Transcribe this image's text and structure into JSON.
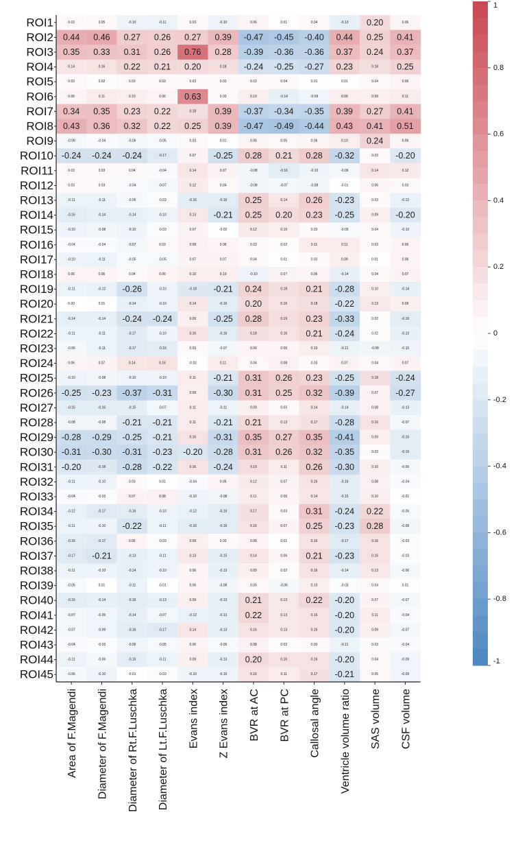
{
  "chart_data": {
    "type": "heatmap",
    "rows": [
      "ROI1",
      "ROI2",
      "ROI3",
      "ROI4",
      "ROI5",
      "ROI6",
      "ROI7",
      "ROI8",
      "ROI9",
      "ROI10",
      "ROI11",
      "ROI12",
      "ROI13",
      "ROI14",
      "ROI15",
      "ROI16",
      "ROI17",
      "ROI18",
      "ROI19",
      "ROI20",
      "ROI21",
      "ROI22",
      "ROI23",
      "ROI24",
      "ROI25",
      "ROI26",
      "ROI27",
      "ROI28",
      "ROI29",
      "ROI30",
      "ROI31",
      "ROI32",
      "ROI33",
      "ROI34",
      "ROI35",
      "ROI36",
      "ROI37",
      "ROI38",
      "ROI39",
      "ROI40",
      "ROI41",
      "ROI42",
      "ROI43",
      "ROI44",
      "ROI45"
    ],
    "columns": [
      "Area of F.Magendi",
      "Diameter of F.Magendi",
      "Diameter of Rt.F.Luschka",
      "Diameter of Lt.F.Luschka",
      "Evans index",
      "Z Evans index",
      "BVR at AC",
      "BVR at PC",
      "Callosal angle",
      "Ventricle volume ratio",
      "SAS volume",
      "CSF volume"
    ],
    "values": [
      [
        0.03,
        0.05,
        -0.1,
        -0.11,
        0.03,
        -0.1,
        0.06,
        0.01,
        0.04,
        -0.13,
        0.2,
        0.06
      ],
      [
        0.44,
        0.46,
        0.27,
        0.26,
        0.27,
        0.39,
        -0.47,
        -0.45,
        -0.4,
        0.44,
        0.25,
        0.41
      ],
      [
        0.35,
        0.33,
        0.31,
        0.26,
        0.76,
        0.28,
        -0.39,
        -0.36,
        -0.36,
        0.37,
        0.24,
        0.37
      ],
      [
        0.14,
        0.16,
        0.22,
        0.21,
        0.2,
        0.18,
        -0.24,
        -0.25,
        -0.27,
        0.23,
        0.18,
        0.25
      ],
      [
        0.03,
        0.02,
        0.03,
        0.03,
        0.03,
        0.03,
        0.03,
        0.04,
        0.01,
        0.01,
        0.04,
        0.06
      ],
      [
        0.06,
        0.11,
        0.1,
        0.06,
        0.63,
        0.03,
        0.1,
        -0.14,
        -0.09,
        0.09,
        0.09,
        0.11
      ],
      [
        0.34,
        0.35,
        0.23,
        0.22,
        0.18,
        0.39,
        -0.37,
        -0.34,
        -0.35,
        0.39,
        0.27,
        0.41
      ],
      [
        0.43,
        0.36,
        0.32,
        0.22,
        0.25,
        0.39,
        -0.47,
        -0.49,
        -0.44,
        0.43,
        0.41,
        0.51
      ],
      [
        -0.06,
        -0.04,
        -0.06,
        -0.05,
        0.03,
        0.01,
        0.06,
        0.05,
        0.06,
        0.1,
        0.24,
        0.06
      ],
      [
        -0.24,
        -0.24,
        -0.24,
        -0.17,
        0.07,
        -0.25,
        0.28,
        0.21,
        0.28,
        -0.32,
        0.03,
        -0.2
      ],
      [
        0.03,
        0.03,
        0.04,
        -0.04,
        0.14,
        0.07,
        -0.08,
        -0.16,
        -0.1,
        -0.06,
        0.14,
        0.12
      ],
      [
        0.03,
        0.03,
        -0.04,
        -0.07,
        0.12,
        0.04,
        -0.08,
        -0.07,
        -0.08,
        -0.01,
        0.06,
        0.03
      ],
      [
        -0.11,
        -0.11,
        -0.06,
        -0.03,
        -0.16,
        -0.16,
        0.25,
        0.14,
        0.26,
        -0.23,
        0.03,
        -0.12
      ],
      [
        -0.16,
        -0.14,
        -0.14,
        -0.1,
        0.13,
        -0.21,
        0.25,
        0.2,
        0.23,
        -0.25,
        0.09,
        -0.2
      ],
      [
        -0.1,
        -0.08,
        -0.1,
        -0.03,
        0.07,
        -0.02,
        0.12,
        0.1,
        0.03,
        -0.05,
        0.04,
        -0.1
      ],
      [
        -0.04,
        -0.04,
        -0.07,
        0.03,
        0.08,
        0.06,
        0.03,
        0.02,
        0.11,
        0.11,
        0.03,
        0.06
      ],
      [
        -0.1,
        -0.11,
        -0.05,
        -0.05,
        0.07,
        0.07,
        0.04,
        0.01,
        0.03,
        0.09,
        0.01,
        0.06
      ],
      [
        0.06,
        0.06,
        0.04,
        0.06,
        0.1,
        0.1,
        -0.1,
        0.07,
        0.06,
        -0.14,
        0.04,
        0.07
      ],
      [
        -0.11,
        -0.12,
        -0.26,
        -0.1,
        -0.18,
        -0.21,
        0.24,
        0.18,
        0.21,
        -0.28,
        0.1,
        -0.14
      ],
      [
        0.0,
        0.01,
        -0.14,
        -0.1,
        0.14,
        -0.16,
        0.2,
        0.16,
        0.18,
        -0.22,
        0.13,
        0.09
      ],
      [
        -0.14,
        -0.14,
        -0.24,
        -0.24,
        0.09,
        -0.25,
        0.28,
        0.19,
        0.23,
        -0.33,
        0.02,
        -0.16
      ],
      [
        -0.11,
        -0.11,
        -0.17,
        -0.1,
        0.16,
        -0.16,
        0.18,
        0.16,
        0.21,
        -0.24,
        0.02,
        -0.13
      ],
      [
        -0.06,
        -0.11,
        -0.17,
        -0.16,
        0.03,
        -0.07,
        0.06,
        0.06,
        0.1,
        -0.11,
        -0.08,
        -0.1
      ],
      [
        0.06,
        0.07,
        0.14,
        0.16,
        -0.02,
        0.11,
        0.04,
        0.08,
        0.03,
        0.07,
        0.04,
        0.07
      ],
      [
        -0.1,
        -0.08,
        -0.1,
        -0.1,
        0.11,
        -0.21,
        0.31,
        0.26,
        0.23,
        -0.25,
        0.18,
        -0.24
      ],
      [
        -0.25,
        -0.23,
        -0.37,
        -0.31,
        0.09,
        -0.3,
        0.31,
        0.25,
        0.32,
        -0.39,
        0.07,
        -0.27
      ],
      [
        -0.16,
        -0.16,
        -0.15,
        -0.07,
        0.11,
        -0.11,
        0.09,
        0.03,
        0.14,
        -0.14,
        0.08,
        -0.13
      ],
      [
        -0.08,
        -0.08,
        -0.21,
        -0.21,
        0.11,
        -0.21,
        0.21,
        0.13,
        0.17,
        -0.28,
        0.16,
        -0.07
      ],
      [
        -0.28,
        -0.29,
        -0.25,
        -0.21,
        0.16,
        -0.31,
        0.35,
        0.27,
        0.35,
        -0.41,
        0.09,
        -0.16
      ],
      [
        -0.31,
        -0.3,
        -0.31,
        -0.23,
        -0.2,
        -0.28,
        0.31,
        0.26,
        0.32,
        -0.35,
        0.03,
        -0.16
      ],
      [
        -0.2,
        -0.18,
        -0.28,
        -0.22,
        0.16,
        -0.24,
        0.19,
        0.11,
        0.26,
        -0.3,
        0.1,
        -0.06
      ],
      [
        -0.11,
        -0.1,
        0.03,
        0.01,
        -0.04,
        0.06,
        0.12,
        0.07,
        0.16,
        -0.16,
        0.08,
        -0.04
      ],
      [
        -0.04,
        -0.03,
        0.07,
        0.08,
        -0.1,
        -0.08,
        0.11,
        0.06,
        0.14,
        -0.15,
        0.1,
        -0.01
      ],
      [
        -0.12,
        -0.17,
        -0.16,
        -0.1,
        -0.12,
        -0.16,
        0.17,
        0.03,
        0.31,
        -0.24,
        0.22,
        -0.05
      ],
      [
        -0.11,
        -0.1,
        -0.22,
        -0.11,
        -0.16,
        -0.16,
        0.16,
        0.07,
        0.25,
        -0.23,
        0.28,
        -0.08
      ],
      [
        -0.16,
        -0.17,
        0.06,
        -0.03,
        0.09,
        0.03,
        0.06,
        0.01,
        0.16,
        -0.17,
        0.16,
        -0.03
      ],
      [
        -0.17,
        -0.21,
        -0.13,
        -0.11,
        0.13,
        -0.15,
        0.14,
        0.06,
        0.21,
        -0.23,
        0.16,
        -0.03
      ],
      [
        -0.11,
        -0.1,
        -0.14,
        -0.1,
        0.06,
        -0.13,
        0.09,
        0.02,
        0.16,
        -0.14,
        0.13,
        -0.06
      ],
      [
        -0.05,
        0.01,
        -0.11,
        -0.01,
        0.06,
        -0.08,
        0.05,
        -0.06,
        0.1,
        -0.03,
        0.04,
        0.01
      ],
      [
        -0.16,
        -0.14,
        -0.16,
        -0.13,
        0.09,
        -0.13,
        0.21,
        0.13,
        0.22,
        -0.2,
        0.07,
        -0.07
      ],
      [
        -0.07,
        -0.09,
        -0.14,
        -0.07,
        -0.12,
        -0.13,
        0.22,
        0.13,
        0.16,
        -0.2,
        0.11,
        -0.04
      ],
      [
        -0.07,
        -0.09,
        -0.16,
        -0.17,
        0.14,
        -0.13,
        0.16,
        0.13,
        0.16,
        -0.2,
        0.09,
        -0.07
      ],
      [
        -0.04,
        -0.03,
        -0.09,
        -0.05,
        0.06,
        -0.05,
        0.08,
        0.02,
        0.03,
        -0.11,
        0.03,
        -0.04
      ],
      [
        -0.11,
        -0.06,
        -0.15,
        -0.11,
        0.09,
        -0.13,
        0.2,
        0.16,
        0.16,
        -0.2,
        0.04,
        -0.09
      ],
      [
        -0.06,
        -0.1,
        -0.01,
        -0.03,
        -0.1,
        -0.1,
        0.16,
        0.11,
        0.17,
        -0.21,
        0.05,
        -0.09
      ]
    ],
    "colorbar": {
      "ticks": [
        "1",
        "0.8",
        "0.6",
        "0.4",
        "0.2",
        "0",
        "-0.2",
        "-0.4",
        "-0.6",
        "-0.8",
        "-1"
      ],
      "range": [
        -1,
        1
      ]
    },
    "colors": {
      "positive": "#c8464f",
      "negative": "#4a86c2",
      "zero": "#ffffff"
    }
  }
}
